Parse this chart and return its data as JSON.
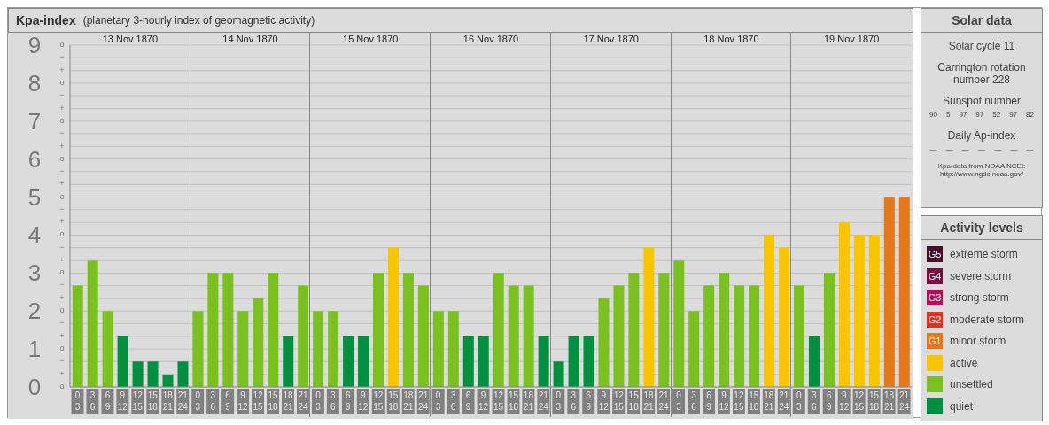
{
  "chart_data": {
    "type": "bar",
    "title": "Kpa-index",
    "subtitle": "(planetary 3-hourly index of geomagnetic activity)",
    "legend_title": "Activity levels",
    "legend": "right",
    "stacked": true,
    "grid": "y",
    "categories": [
      "0\n3",
      "3\n6",
      "6\n9",
      "9\n12",
      "12\n15",
      "15\n18",
      "18\n21",
      "21\n24",
      "0\n3",
      "3\n6",
      "6\n9",
      "9\n12",
      "12\n15",
      "15\n18",
      "18\n21",
      "21\n24",
      "0\n3",
      "3\n6",
      "6\n9",
      "9\n12",
      "12\n15",
      "15\n18",
      "18\n21",
      "21\n24",
      "0\n3",
      "3\n6",
      "6\n9",
      "9\n12",
      "12\n15",
      "15\n18",
      "18\n21",
      "21\n24",
      "0\n3",
      "3\n6",
      "6\n9",
      "9\n12",
      "12\n15",
      "15\n18",
      "18\n21",
      "21\n24",
      "0\n3",
      "3\n6",
      "6\n9",
      "9\n12",
      "12\n15",
      "15\n18",
      "18\n21",
      "21\n24",
      "0\n3",
      "3\n6",
      "6\n9",
      "9\n12",
      "12\n15",
      "15\n18",
      "18\n21",
      "21\n24"
    ],
    "series": [
      {
        "name": "extreme storm",
        "color": "#4a0a2a",
        "values": [
          null,
          null,
          null,
          null,
          null,
          null,
          null,
          null,
          null,
          null,
          null,
          null,
          null,
          null,
          null,
          null,
          null,
          null,
          null,
          null,
          null,
          null,
          null,
          null,
          null,
          null,
          null,
          null,
          null,
          null,
          null,
          null,
          null,
          null,
          null,
          null,
          null,
          null,
          null,
          null,
          null,
          null,
          null,
          null,
          null,
          null,
          null,
          null,
          null,
          null,
          null,
          null,
          null,
          null,
          null,
          null
        ]
      },
      {
        "name": "severe storm",
        "color": "#7a0a44",
        "values": [
          null,
          null,
          null,
          null,
          null,
          null,
          null,
          null,
          null,
          null,
          null,
          null,
          null,
          null,
          null,
          null,
          null,
          null,
          null,
          null,
          null,
          null,
          null,
          null,
          null,
          null,
          null,
          null,
          null,
          null,
          null,
          null,
          null,
          null,
          null,
          null,
          null,
          null,
          null,
          null,
          null,
          null,
          null,
          null,
          null,
          null,
          null,
          null,
          null,
          null,
          null,
          null,
          null,
          null,
          null,
          null
        ]
      },
      {
        "name": "strong storm",
        "color": "#b0105a",
        "values": [
          null,
          null,
          null,
          null,
          null,
          null,
          null,
          null,
          null,
          null,
          null,
          null,
          null,
          null,
          null,
          null,
          null,
          null,
          null,
          null,
          null,
          null,
          null,
          null,
          null,
          null,
          null,
          null,
          null,
          null,
          null,
          null,
          null,
          null,
          null,
          null,
          null,
          null,
          null,
          null,
          null,
          null,
          null,
          null,
          null,
          null,
          null,
          null,
          null,
          null,
          null,
          null,
          null,
          null,
          null,
          null
        ]
      },
      {
        "name": "moderate storm",
        "color": "#e03020",
        "values": [
          null,
          null,
          null,
          null,
          null,
          null,
          null,
          null,
          null,
          null,
          null,
          null,
          null,
          null,
          null,
          null,
          null,
          null,
          null,
          null,
          null,
          null,
          null,
          null,
          null,
          null,
          null,
          null,
          null,
          null,
          null,
          null,
          null,
          null,
          null,
          null,
          null,
          null,
          null,
          null,
          null,
          null,
          null,
          null,
          null,
          null,
          null,
          null,
          null,
          null,
          null,
          null,
          null,
          null,
          null,
          null
        ]
      },
      {
        "name": "minor storm",
        "color": "#e57818",
        "values": [
          null,
          null,
          null,
          null,
          null,
          null,
          null,
          null,
          null,
          null,
          null,
          null,
          null,
          null,
          null,
          null,
          null,
          null,
          null,
          null,
          null,
          null,
          null,
          null,
          null,
          null,
          null,
          null,
          null,
          null,
          null,
          null,
          null,
          null,
          null,
          null,
          null,
          null,
          null,
          null,
          null,
          null,
          null,
          null,
          null,
          null,
          null,
          null,
          null,
          null,
          null,
          null,
          null,
          null,
          5,
          5
        ]
      },
      {
        "name": "active",
        "color": "#f9c500",
        "values": [
          null,
          null,
          null,
          null,
          null,
          null,
          null,
          null,
          null,
          null,
          null,
          null,
          null,
          null,
          null,
          null,
          null,
          null,
          null,
          null,
          null,
          3.67,
          null,
          null,
          null,
          null,
          null,
          null,
          null,
          null,
          null,
          null,
          null,
          null,
          null,
          null,
          null,
          null,
          3.67,
          null,
          null,
          null,
          null,
          null,
          null,
          null,
          4,
          3.67,
          null,
          null,
          null,
          4.33,
          4,
          4,
          null,
          null
        ]
      },
      {
        "name": "unsettled",
        "color": "#7ac020",
        "values": [
          2.67,
          3.33,
          2,
          null,
          null,
          null,
          null,
          null,
          2,
          3,
          3,
          2,
          2.33,
          3,
          null,
          2.67,
          2,
          2,
          null,
          null,
          3,
          null,
          3,
          2.67,
          2,
          2,
          null,
          null,
          3,
          2.67,
          2.67,
          null,
          null,
          null,
          null,
          2.33,
          2.67,
          3,
          null,
          3,
          3.33,
          2,
          2.67,
          3,
          2.67,
          2.67,
          null,
          null,
          2.67,
          null,
          3,
          null,
          null,
          null,
          null,
          null
        ]
      },
      {
        "name": "quiet",
        "color": "#009040",
        "values": [
          null,
          null,
          null,
          1.33,
          0.67,
          0.67,
          0.33,
          0.67,
          null,
          null,
          null,
          null,
          null,
          null,
          1.33,
          null,
          null,
          null,
          1.33,
          1.33,
          null,
          null,
          null,
          null,
          null,
          null,
          1.33,
          1.33,
          null,
          null,
          null,
          1.33,
          0.67,
          1.33,
          1.33,
          null,
          null,
          null,
          null,
          null,
          null,
          null,
          null,
          null,
          null,
          null,
          null,
          null,
          null,
          1.33,
          null,
          null,
          null,
          null,
          null,
          null
        ]
      }
    ],
    "ylim": [
      0,
      9
    ],
    "yticks": [
      0,
      {
        "value": 0.33,
        "label": null
      },
      {
        "value": 0.67,
        "label": null
      },
      1,
      {
        "value": 1.33,
        "label": null
      },
      {
        "value": 1.67,
        "label": null
      },
      2,
      {
        "value": 2.33,
        "label": null
      },
      {
        "value": 2.67,
        "label": null
      },
      3,
      {
        "value": 3.33,
        "label": null
      },
      {
        "value": 3.67,
        "label": null
      },
      4,
      {
        "value": 4.33,
        "label": null
      },
      {
        "value": 4.67,
        "label": null
      },
      5,
      {
        "value": 5.33,
        "label": null
      },
      {
        "value": 5.67,
        "label": null
      },
      6,
      {
        "value": 6.33,
        "label": null
      },
      {
        "value": 6.67,
        "label": null
      },
      7,
      {
        "value": 7.33,
        "label": null
      },
      {
        "value": 7.67,
        "label": null
      },
      8,
      {
        "value": 8.33,
        "label": null
      },
      {
        "value": 8.67,
        "label": null
      },
      9
    ],
    "annotations": [
      "13 Nov 1870",
      "14 Nov 1870",
      "15 Nov 1870",
      "16 Nov 1870",
      "17 Nov 1870",
      "18 Nov 1870",
      "19 Nov 1870",
      "Solar data",
      "Solar cycle 11",
      "Carrington rotation number 228",
      "Sunspot number",
      "90",
      "5",
      "97",
      "97",
      "52",
      "97",
      "82",
      "Daily Ap-index",
      "—",
      "—",
      "—",
      "—",
      "—",
      "—",
      "—",
      "Kpa-data from NOAA NCEI: http://www.ngdc.noaa.gov/",
      "G5",
      "G4",
      "G3",
      "G2",
      "G1",
      "o",
      "+",
      "−",
      "o",
      "+",
      "−",
      "o",
      "+",
      "−",
      "o",
      "+",
      "−",
      "o",
      "+",
      "−",
      "o",
      "+",
      "−",
      "o",
      "+",
      "−",
      "o",
      "+",
      "−",
      "o",
      "+",
      "−",
      "o"
    ]
  }
}
